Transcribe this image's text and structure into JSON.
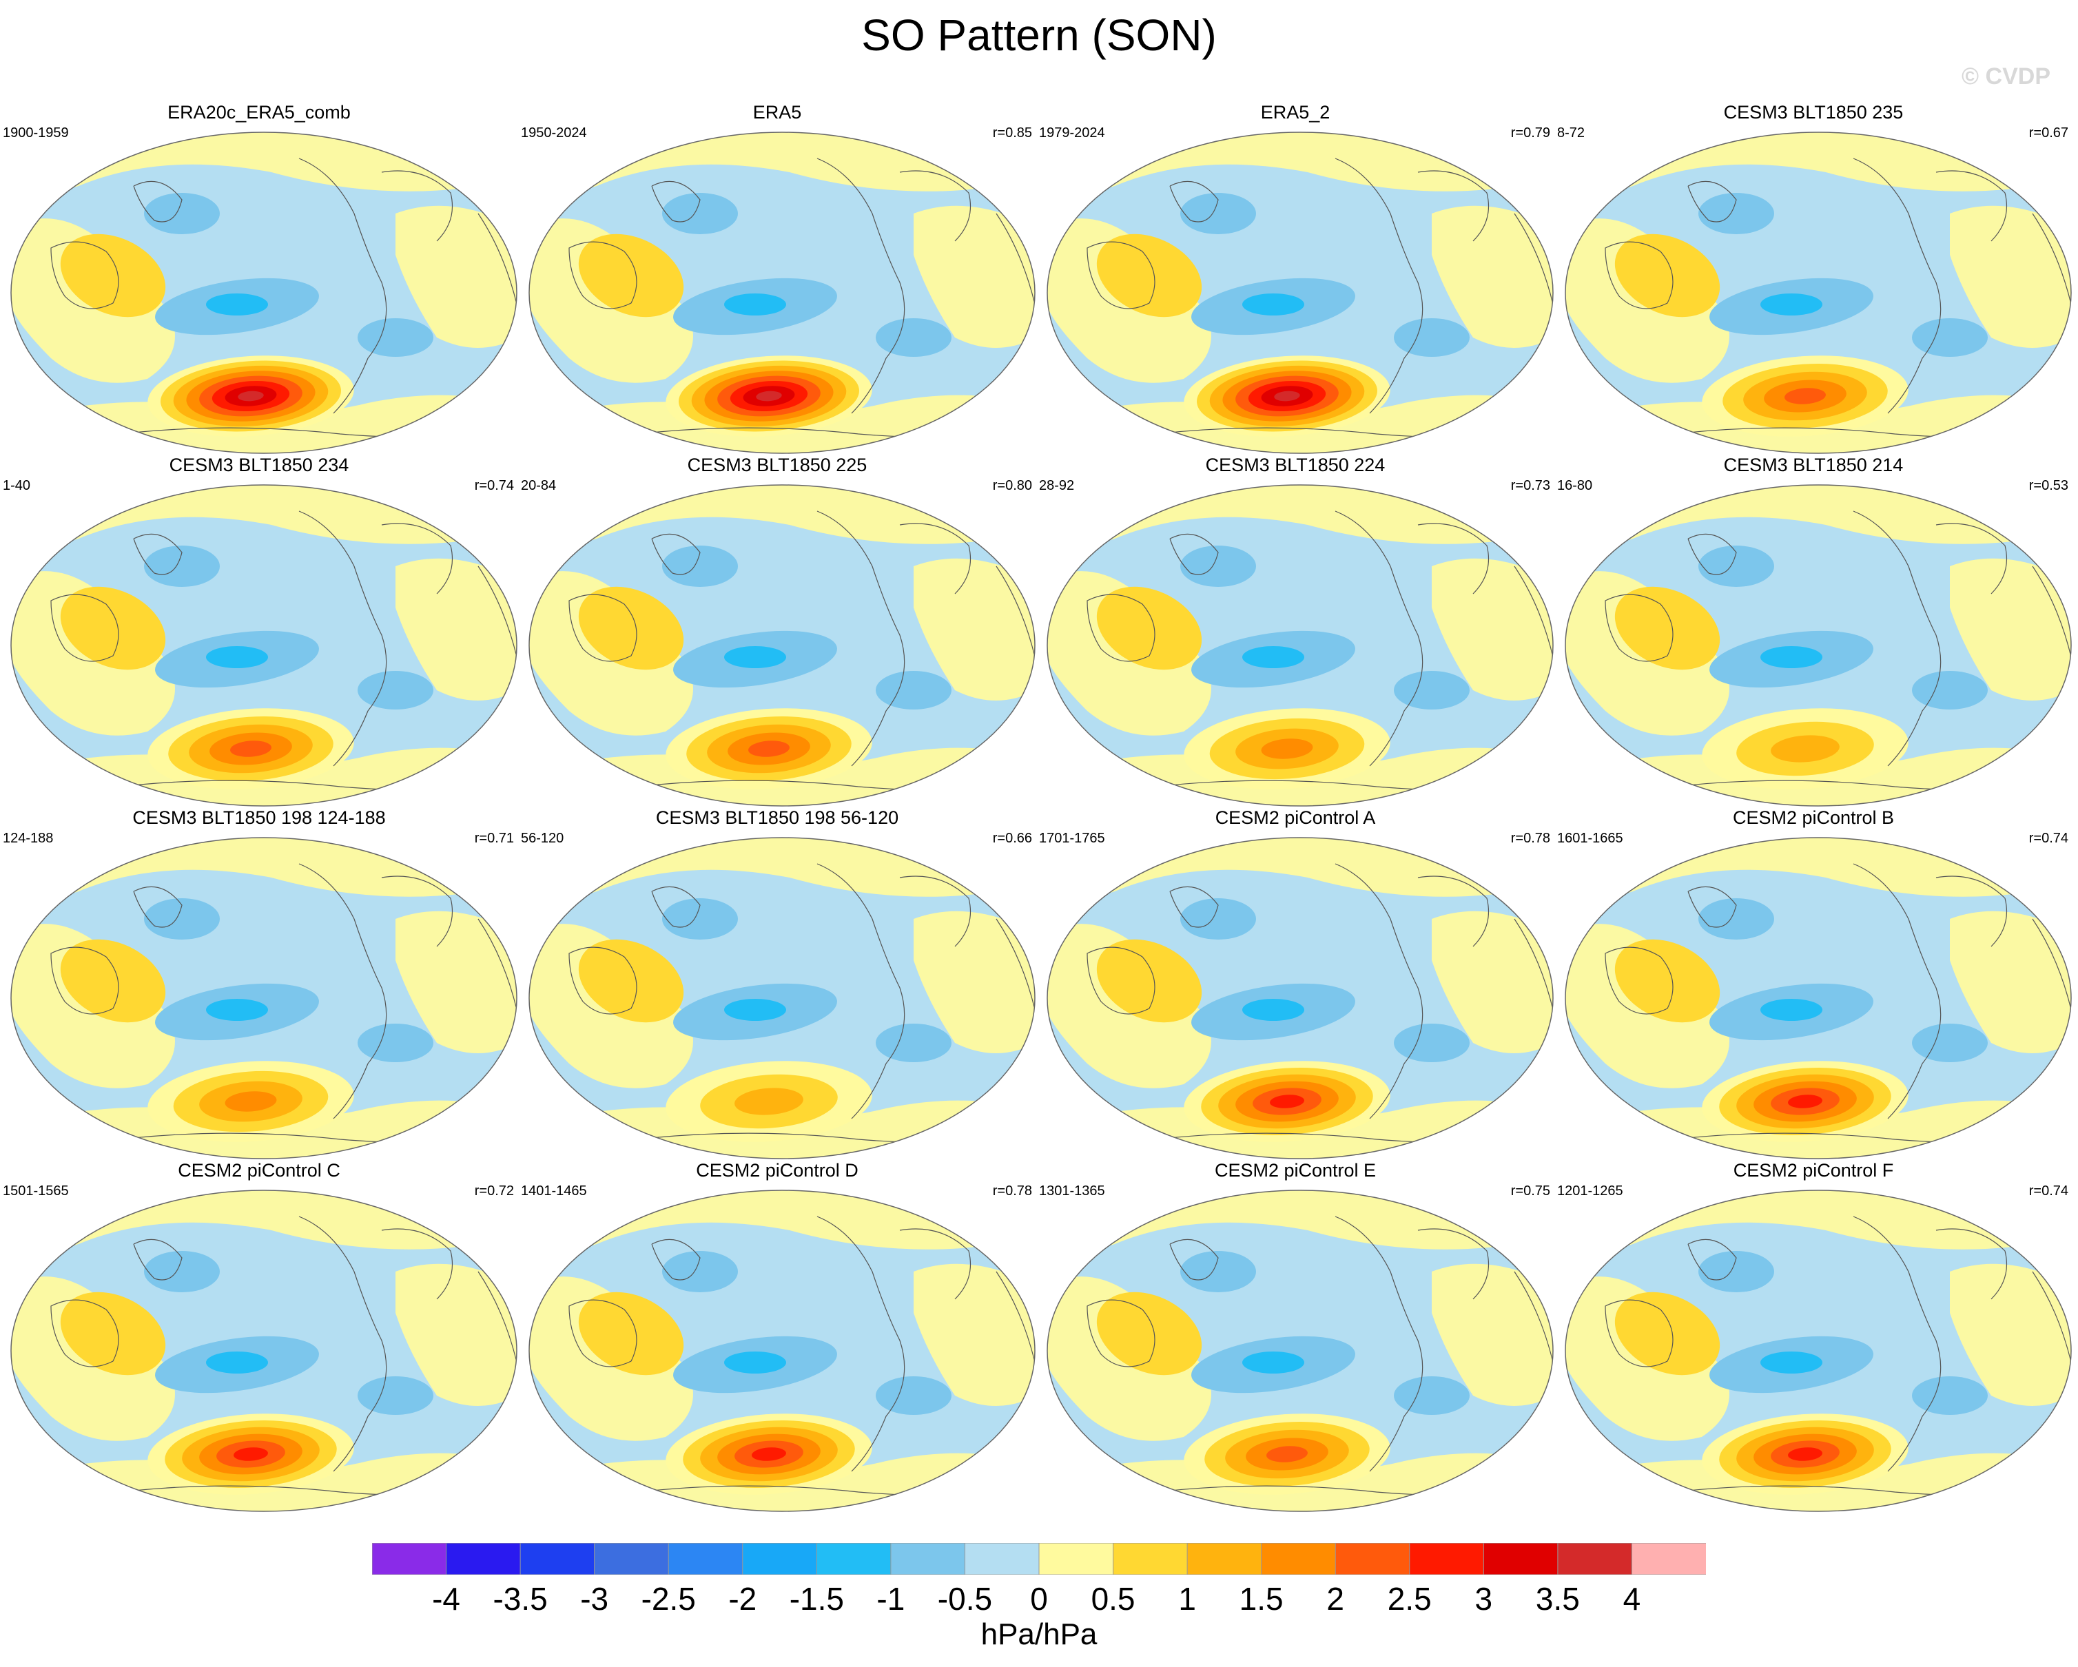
{
  "title": "SO Pattern (SON)",
  "watermark": "© CVDP",
  "colorbar": {
    "colors": [
      "#8a2be8",
      "#2a1af0",
      "#1e3ff0",
      "#3c6ee0",
      "#2c86f3",
      "#18a8f7",
      "#22bdf5",
      "#7cc6ec",
      "#b4def2",
      "#fffa9e",
      "#ffd832",
      "#ffb30e",
      "#ff8c00",
      "#ff5a0c",
      "#ff1a00",
      "#e00000",
      "#d42a2a",
      "#ffb0b0"
    ],
    "labels": [
      "-4",
      "-3.5",
      "-3",
      "-2.5",
      "-2",
      "-1.5",
      "-1",
      "-0.5",
      "0",
      "0.5",
      "1",
      "1.5",
      "2",
      "2.5",
      "3",
      "3.5",
      "4"
    ],
    "units": "hPa/hPa"
  },
  "panels": [
    {
      "title": "ERA20c_ERA5_comb",
      "years": "1900-1959",
      "r": "",
      "max_level": 3.5
    },
    {
      "title": "ERA5",
      "years": "1950-2024",
      "r": "r=0.85",
      "max_level": 3.5
    },
    {
      "title": "ERA5_2",
      "years": "1979-2024",
      "r": "r=0.79",
      "max_level": 3.5
    },
    {
      "title": "CESM3 BLT1850 235",
      "years": "8-72",
      "r": "r=0.67",
      "max_level": 2
    },
    {
      "title": "CESM3 BLT1850 234",
      "years": "1-40",
      "r": "r=0.74",
      "max_level": 2
    },
    {
      "title": "CESM3 BLT1850 225",
      "years": "20-84",
      "r": "r=0.80",
      "max_level": 2
    },
    {
      "title": "CESM3 BLT1850 224",
      "years": "28-92",
      "r": "r=0.73",
      "max_level": 1.5
    },
    {
      "title": "CESM3 BLT1850 214",
      "years": "16-80",
      "r": "r=0.53",
      "max_level": 1
    },
    {
      "title": "CESM3 BLT1850 198 124-188",
      "years": "124-188",
      "r": "r=0.71",
      "max_level": 1.5
    },
    {
      "title": "CESM3 BLT1850 198 56-120",
      "years": "56-120",
      "r": "r=0.66",
      "max_level": 1
    },
    {
      "title": "CESM2 piControl A",
      "years": "1701-1765",
      "r": "r=0.78",
      "max_level": 2.5
    },
    {
      "title": "CESM2 piControl B",
      "years": "1601-1665",
      "r": "r=0.74",
      "max_level": 2.5
    },
    {
      "title": "CESM2 piControl C",
      "years": "1501-1565",
      "r": "r=0.72",
      "max_level": 2.5
    },
    {
      "title": "CESM2 piControl D",
      "years": "1401-1465",
      "r": "r=0.78",
      "max_level": 2.5
    },
    {
      "title": "CESM2 piControl E",
      "years": "1301-1365",
      "r": "r=0.75",
      "max_level": 2
    },
    {
      "title": "CESM2 piControl F",
      "years": "1201-1265",
      "r": "r=0.74",
      "max_level": 2.5
    }
  ]
}
